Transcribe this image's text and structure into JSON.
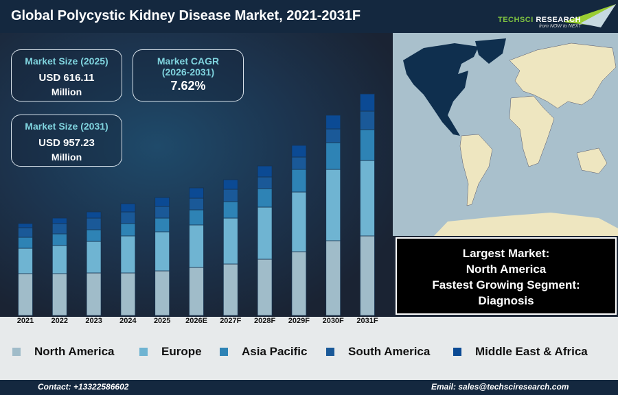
{
  "header": {
    "title": "Global Polycystic Kidney Disease Market, 2021-2031F",
    "logo_text": "TechSci Research",
    "logo_tagline": "from NOW to NEXT"
  },
  "kpis": [
    {
      "label": "Market Size (2025)",
      "value": "USD 616.11",
      "unit": "Million"
    },
    {
      "label": "Market CAGR (2026-2031)",
      "value": "7.62%"
    },
    {
      "label": "Market Size (2031)",
      "value": "USD 957.23",
      "unit": "Million"
    }
  ],
  "info": {
    "line1": "Largest Market:",
    "line2": "North America",
    "line3": "Fastest Growing Segment:",
    "line4": "Diagnosis"
  },
  "footer": {
    "contact": "Contact: +13322586602",
    "email": "Email: sales@techsciresearch.com"
  },
  "chart_data": {
    "type": "bar",
    "stacked": true,
    "title": "",
    "xlabel": "",
    "ylabel": "",
    "grid": false,
    "legend_position": "bottom",
    "note": "relative segment sizes; no y-axis printed",
    "categories": [
      "2021",
      "2022",
      "2023",
      "2024",
      "2025",
      "2026E",
      "2027F",
      "2028F",
      "2029F",
      "2030F",
      "2031F"
    ],
    "series": [
      {
        "name": "North America",
        "color": "#a0bcc9",
        "values": [
          61,
          61,
          62,
          62,
          65,
          70,
          75,
          82,
          93,
          109,
          116
        ]
      },
      {
        "name": "Europe",
        "color": "#6fb4d2",
        "values": [
          37,
          41,
          46,
          54,
          57,
          62,
          67,
          76,
          87,
          104,
          110
        ]
      },
      {
        "name": "Asia Pacific",
        "color": "#2e83b5",
        "values": [
          16,
          17,
          17,
          18,
          20,
          22,
          24,
          27,
          33,
          39,
          45
        ]
      },
      {
        "name": "South America",
        "color": "#1a5998",
        "values": [
          14,
          15,
          17,
          17,
          17,
          17,
          18,
          17,
          18,
          20,
          27
        ]
      },
      {
        "name": "Middle East & Africa",
        "color": "#0b4a94",
        "values": [
          6,
          8,
          9,
          12,
          13,
          15,
          14,
          16,
          17,
          20,
          25
        ]
      }
    ]
  }
}
